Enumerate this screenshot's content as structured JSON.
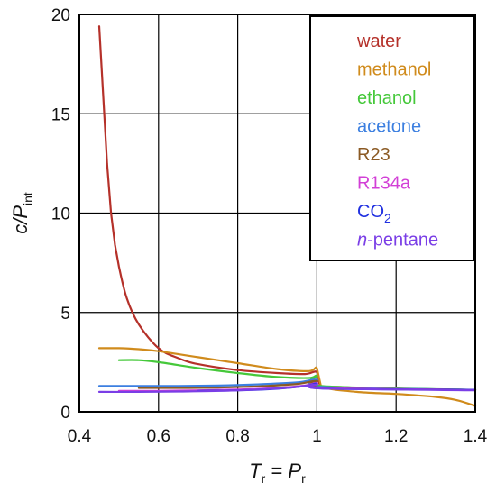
{
  "chart_data": {
    "type": "line",
    "title": "",
    "xlabel": {
      "main": "T",
      "sub": "r",
      "eq": " = ",
      "main2": "P",
      "sub2": "r"
    },
    "ylabel": {
      "main": "c/P",
      "sub": "int"
    },
    "xlim": [
      0.4,
      1.4
    ],
    "ylim": [
      0,
      20
    ],
    "xticks": [
      "0.4",
      "0.6",
      "0.8",
      "1",
      "1.2",
      "1.4"
    ],
    "yticks": [
      "0",
      "5",
      "10",
      "15",
      "20"
    ],
    "grid": true,
    "legend_position": "top-right",
    "series": [
      {
        "name": "water",
        "color": "#b5312a",
        "points": [
          [
            0.45,
            19.4
          ],
          [
            0.46,
            16.0
          ],
          [
            0.47,
            12.5
          ],
          [
            0.48,
            10.0
          ],
          [
            0.49,
            8.4
          ],
          [
            0.5,
            7.3
          ],
          [
            0.52,
            5.7
          ],
          [
            0.55,
            4.4
          ],
          [
            0.6,
            3.2
          ],
          [
            0.65,
            2.7
          ],
          [
            0.7,
            2.4
          ],
          [
            0.8,
            2.1
          ],
          [
            0.9,
            1.95
          ],
          [
            0.97,
            1.9
          ],
          [
            1.0,
            2.0
          ],
          [
            1.01,
            1.3
          ],
          [
            1.05,
            1.25
          ],
          [
            1.2,
            1.15
          ],
          [
            1.4,
            1.1
          ]
        ]
      },
      {
        "name": "methanol",
        "color": "#d08b1c",
        "points": [
          [
            0.45,
            3.2
          ],
          [
            0.5,
            3.2
          ],
          [
            0.55,
            3.15
          ],
          [
            0.6,
            3.05
          ],
          [
            0.7,
            2.75
          ],
          [
            0.8,
            2.45
          ],
          [
            0.9,
            2.15
          ],
          [
            0.98,
            2.05
          ],
          [
            1.0,
            2.2
          ],
          [
            1.01,
            1.3
          ],
          [
            1.1,
            1.0
          ],
          [
            1.2,
            0.9
          ],
          [
            1.3,
            0.75
          ],
          [
            1.35,
            0.6
          ],
          [
            1.4,
            0.3
          ]
        ]
      },
      {
        "name": "ethanol",
        "color": "#45c83a",
        "points": [
          [
            0.5,
            2.6
          ],
          [
            0.55,
            2.6
          ],
          [
            0.6,
            2.5
          ],
          [
            0.7,
            2.2
          ],
          [
            0.8,
            1.95
          ],
          [
            0.9,
            1.75
          ],
          [
            0.98,
            1.7
          ],
          [
            1.0,
            1.8
          ],
          [
            1.01,
            1.3
          ],
          [
            1.4,
            1.1
          ]
        ]
      },
      {
        "name": "acetone",
        "color": "#3c7fe0",
        "points": [
          [
            0.45,
            1.3
          ],
          [
            0.55,
            1.3
          ],
          [
            0.65,
            1.3
          ],
          [
            0.75,
            1.32
          ],
          [
            0.85,
            1.38
          ],
          [
            0.95,
            1.48
          ],
          [
            1.0,
            1.62
          ],
          [
            1.01,
            1.25
          ],
          [
            1.4,
            1.1
          ]
        ]
      },
      {
        "name": "R23",
        "color": "#8b5a24",
        "points": [
          [
            0.55,
            1.2
          ],
          [
            0.65,
            1.2
          ],
          [
            0.75,
            1.22
          ],
          [
            0.85,
            1.28
          ],
          [
            0.95,
            1.4
          ],
          [
            1.0,
            1.55
          ],
          [
            1.01,
            1.22
          ],
          [
            1.4,
            1.1
          ]
        ]
      },
      {
        "name": "R134a",
        "color": "#d23fd6",
        "points": [
          [
            0.5,
            1.05
          ],
          [
            0.6,
            1.05
          ],
          [
            0.7,
            1.08
          ],
          [
            0.8,
            1.12
          ],
          [
            0.9,
            1.2
          ],
          [
            0.97,
            1.32
          ],
          [
            1.0,
            1.45
          ],
          [
            1.01,
            1.2
          ],
          [
            1.4,
            1.1
          ]
        ]
      },
      {
        "name": "CO2",
        "nameMain": "CO",
        "nameSub": "2",
        "color": "#2030e0",
        "points": [
          [
            0.7,
            1.05
          ],
          [
            0.8,
            1.08
          ],
          [
            0.9,
            1.16
          ],
          [
            0.97,
            1.3
          ],
          [
            1.0,
            1.42
          ],
          [
            1.01,
            1.18
          ],
          [
            1.4,
            1.1
          ]
        ]
      },
      {
        "name": "n-pentane",
        "nameItalic": "n",
        "nameRest": "-pentane",
        "color": "#7a3ee6",
        "points": [
          [
            0.45,
            1.0
          ],
          [
            0.55,
            1.0
          ],
          [
            0.65,
            1.02
          ],
          [
            0.75,
            1.05
          ],
          [
            0.85,
            1.12
          ],
          [
            0.95,
            1.25
          ],
          [
            1.0,
            1.38
          ],
          [
            1.01,
            1.18
          ],
          [
            1.4,
            1.08
          ]
        ]
      }
    ]
  }
}
